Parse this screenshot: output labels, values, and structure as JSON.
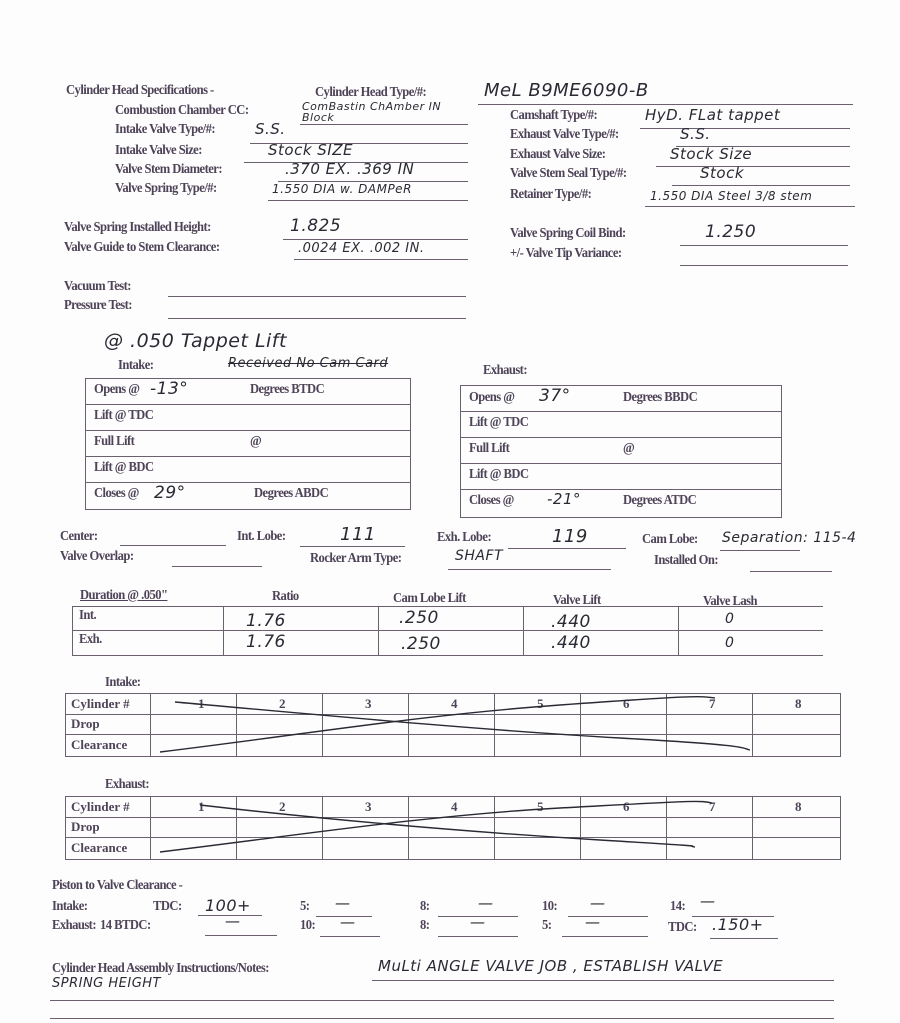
{
  "spec": {
    "title": "Cylinder Head Specifications -",
    "head_type_label": "Cylinder Head Type/#:",
    "head_type": "MeL  B9ME6090-B",
    "left": [
      {
        "label": "Combustion Chamber CC:",
        "value": "ComBastin ChAmber IN Block"
      },
      {
        "label": "Intake Valve Type/#:",
        "value": "S.S."
      },
      {
        "label": "Intake Valve Size:",
        "value": "Stock SIZE"
      },
      {
        "label": "Valve Stem Diameter:",
        "value": ".370 EX.  .369 IN"
      },
      {
        "label": "Valve Spring Type/#:",
        "value": "1.550 DIA w. DAMPeR"
      }
    ],
    "right": [
      {
        "label": "Camshaft Type/#:",
        "value": "HyD. FLat tappet"
      },
      {
        "label": "Exhaust Valve Type/#:",
        "value": "S.S."
      },
      {
        "label": "Exhaust Valve Size:",
        "value": "Stock Size"
      },
      {
        "label": "Valve Stem Seal Type/#:",
        "value": "Stock"
      },
      {
        "label": "Retainer Type/#:",
        "value": "1.550 DIA  Steel 3/8 stem"
      }
    ],
    "installed_height_label": "Valve Spring Installed Height:",
    "installed_height": "1.825",
    "guide_clearance_label": "Valve Guide to Stem Clearance:",
    "guide_clearance": ".0024 EX.   .002 IN.",
    "coil_bind_label": "Valve Spring Coil Bind:",
    "coil_bind": "1.250",
    "tip_variance_label": "+/- Valve Tip Variance:",
    "tip_variance": "",
    "vacuum_label": "Vacuum Test:",
    "pressure_label": "Pressure Test:"
  },
  "cam": {
    "note": "@ .050 Tappet Lift",
    "struck_note": "Received No Cam Card",
    "intake_label": "Intake:",
    "exhaust_label": "Exhaust:",
    "intake_rows": [
      {
        "label": "Opens @",
        "value": "-13°",
        "suffix": "Degrees BTDC"
      },
      {
        "label": "Lift @ TDC",
        "value": "",
        "suffix": ""
      },
      {
        "label": "Full Lift",
        "value": "",
        "suffix": "@"
      },
      {
        "label": "Lift @ BDC",
        "value": "",
        "suffix": ""
      },
      {
        "label": "Closes @",
        "value": "29°",
        "suffix": "Degrees ABDC"
      }
    ],
    "exhaust_rows": [
      {
        "label": "Opens @",
        "value": "37°",
        "suffix": "Degrees BBDC"
      },
      {
        "label": "Lift @ TDC",
        "value": "",
        "suffix": ""
      },
      {
        "label": "Full Lift",
        "value": "",
        "suffix": "@"
      },
      {
        "label": "Lift @ BDC",
        "value": "",
        "suffix": ""
      },
      {
        "label": "Closes @",
        "value": "-21°",
        "suffix": "Degrees ATDC"
      }
    ],
    "center_label": "Center:",
    "int_lobe_label": "Int. Lobe:",
    "int_lobe": "111",
    "exh_lobe_label": "Exh. Lobe:",
    "exh_lobe": "119",
    "cam_lobe_label": "Cam Lobe:",
    "cam_lobe": "Separation: 115-4",
    "overlap_label": "Valve Overlap:",
    "rocker_label": "Rocker Arm Type:",
    "rocker": "SHAFT",
    "installed_on_label": "Installed On:"
  },
  "duration": {
    "headers": [
      "Duration @ .050\"",
      "Ratio",
      "Cam Lobe Lift",
      "Valve Lift",
      "Valve Lash"
    ],
    "rows": [
      {
        "label": "Int.",
        "ratio": "1.76",
        "cam_lobe_lift": ".250",
        "valve_lift": ".440",
        "lash": "0"
      },
      {
        "label": "Exh.",
        "ratio": "1.76",
        "cam_lobe_lift": ".250",
        "valve_lift": ".440",
        "lash": "0"
      }
    ]
  },
  "cyl_intake": {
    "title": "Intake:",
    "row_labels": [
      "Cylinder #",
      "Drop",
      "Clearance"
    ],
    "cylinders": [
      "1",
      "2",
      "3",
      "4",
      "5",
      "6",
      "7",
      "8"
    ]
  },
  "cyl_exhaust": {
    "title": "Exhaust:",
    "row_labels": [
      "Cylinder #",
      "Drop",
      "Clearance"
    ],
    "cylinders": [
      "1",
      "2",
      "3",
      "4",
      "5",
      "6",
      "7",
      "8"
    ]
  },
  "ptv": {
    "title": "Piston to Valve Clearance -",
    "intake_label": "Intake:",
    "exhaust_label": "Exhaust:",
    "intake": [
      {
        "label": "TDC:",
        "value": "100+"
      },
      {
        "label": "5:",
        "value": "—"
      },
      {
        "label": "8:",
        "value": "—"
      },
      {
        "label": "10:",
        "value": "—"
      },
      {
        "label": "14:",
        "value": "—"
      }
    ],
    "exhaust": [
      {
        "label": "14 BTDC:",
        "value": "—"
      },
      {
        "label": "10:",
        "value": "—"
      },
      {
        "label": "8:",
        "value": "—"
      },
      {
        "label": "5:",
        "value": "—"
      },
      {
        "label": "TDC:",
        "value": ".150+"
      }
    ]
  },
  "notes": {
    "label": "Cylinder Head Assembly Instructions/Notes:",
    "line1": "MuLti ANGLE VALVE JOB ,  ESTABLISH VALVE",
    "line2": "SPRING HEIGHT"
  }
}
